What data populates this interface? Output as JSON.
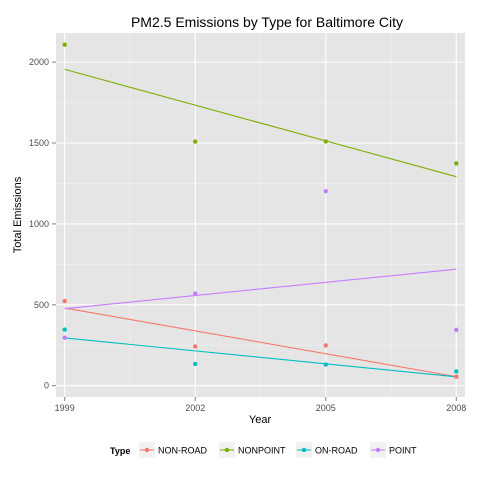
{
  "chart_data": {
    "type": "scatter",
    "title": "PM2.5 Emissions by Type for Baltimore City",
    "xlabel": "Year",
    "ylabel": "Total Emissions",
    "x": [
      1999,
      2002,
      2005,
      2008
    ],
    "xticks": [
      "1999",
      "2002",
      "2005",
      "2008"
    ],
    "yticks": [
      "0",
      "500",
      "1000",
      "1500",
      "2000"
    ],
    "xlim": [
      1998.8,
      2008.2
    ],
    "ylim": [
      -70,
      2180
    ],
    "grid": true,
    "legend_position": "bottom",
    "legend_title": "Type",
    "series": [
      {
        "name": "NON-ROAD",
        "color": "#f8766d",
        "values": [
          522.9,
          242.7,
          248.9,
          55.8
        ],
        "trend": [
          480,
          56
        ]
      },
      {
        "name": "NONPOINT",
        "color": "#7cae00",
        "values": [
          2108,
          1509,
          1510,
          1374
        ],
        "trend": [
          1955,
          1292
        ]
      },
      {
        "name": "ON-ROAD",
        "color": "#00bfc4",
        "values": [
          346.8,
          134.3,
          130.4,
          88.3
        ],
        "trend": [
          295,
          55
        ]
      },
      {
        "name": "POINT",
        "color": "#c77cff",
        "values": [
          296.8,
          569.3,
          1202,
          344.97
        ],
        "trend": [
          476,
          720
        ]
      }
    ]
  }
}
